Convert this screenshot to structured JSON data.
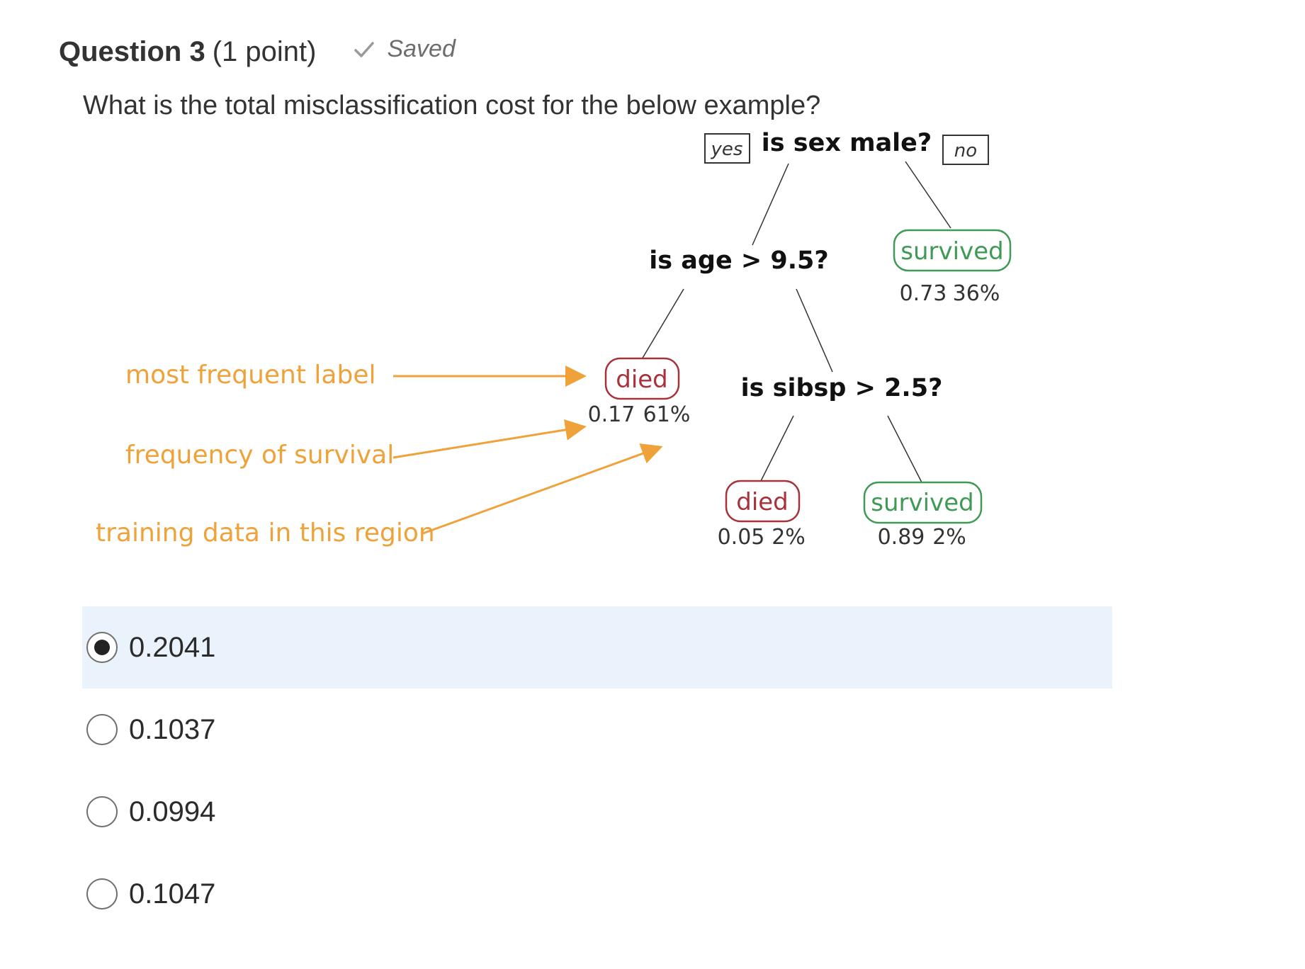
{
  "question": {
    "title": "Question 3",
    "points": "(1 point)",
    "saved_label": "Saved",
    "prompt": "What is the total misclassification cost for the below example?"
  },
  "tree": {
    "root": {
      "question": "is sex male?",
      "yes_label": "yes",
      "no_label": "no"
    },
    "age_node": {
      "question": "is age > 9.5?"
    },
    "sibsp_node": {
      "question": "is sibsp > 2.5?"
    },
    "leaves": [
      {
        "label": "survived",
        "freq": "0.73",
        "share": "36%",
        "outcome": "survived"
      },
      {
        "label": "died",
        "freq": "0.17",
        "share": "61%",
        "outcome": "died"
      },
      {
        "label": "died",
        "freq": "0.05",
        "share": "2%",
        "outcome": "died"
      },
      {
        "label": "survived",
        "freq": "0.89",
        "share": "2%",
        "outcome": "survived"
      }
    ],
    "annotations": {
      "most_frequent_label": "most frequent label",
      "frequency_of_survival": "frequency of survival",
      "training_data": "training data in this region"
    },
    "colors": {
      "died": "#a8323a",
      "survived": "#3e9a55",
      "annotation": "#f0a23a"
    }
  },
  "options": [
    {
      "label": "0.2041",
      "selected": true
    },
    {
      "label": "0.1037",
      "selected": false
    },
    {
      "label": "0.0994",
      "selected": false
    },
    {
      "label": "0.1047",
      "selected": false
    }
  ]
}
